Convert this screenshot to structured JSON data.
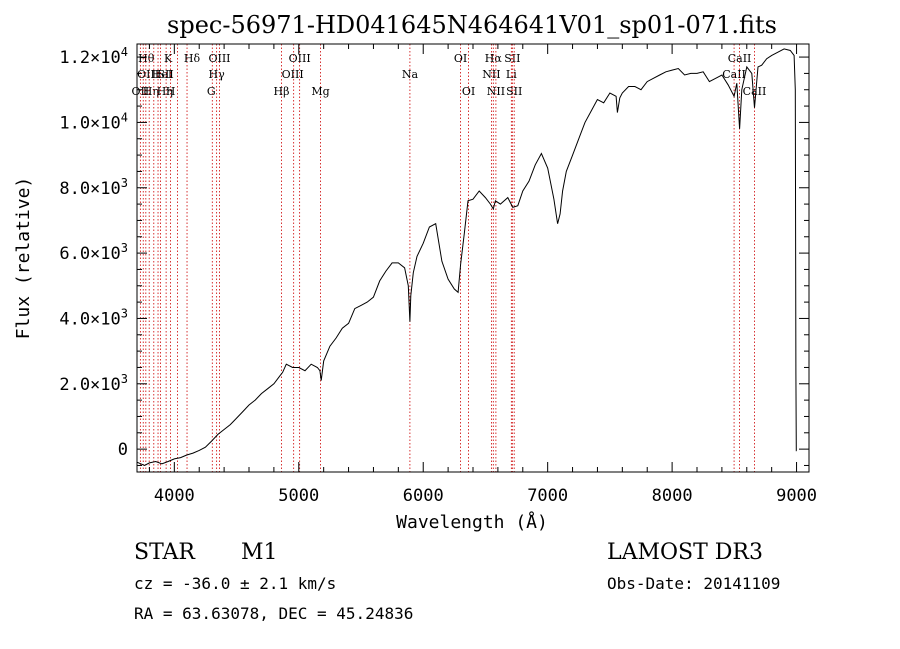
{
  "chart_data": {
    "type": "line",
    "title": "spec-56971-HD041645N464641V01_sp01-071.fits",
    "xlabel": "Wavelength (Å)",
    "ylabel": "Flux (relative)",
    "xlim": [
      3700,
      9100
    ],
    "ylim": [
      -700,
      12400
    ],
    "x_ticks": [
      {
        "value": 4000,
        "label": "4000"
      },
      {
        "value": 5000,
        "label": "5000"
      },
      {
        "value": 6000,
        "label": "6000"
      },
      {
        "value": 7000,
        "label": "7000"
      },
      {
        "value": 8000,
        "label": "8000"
      },
      {
        "value": 9000,
        "label": "9000"
      }
    ],
    "y_ticks": [
      {
        "value": 0,
        "mant": "0",
        "exp": ""
      },
      {
        "value": 2000,
        "mant": "2.0×10",
        "exp": "3"
      },
      {
        "value": 4000,
        "mant": "4.0×10",
        "exp": "3"
      },
      {
        "value": 6000,
        "mant": "6.0×10",
        "exp": "3"
      },
      {
        "value": 8000,
        "mant": "8.0×10",
        "exp": "3"
      },
      {
        "value": 10000,
        "mant": "1.0×10",
        "exp": "4"
      },
      {
        "value": 12000,
        "mant": "1.2×10",
        "exp": "4"
      }
    ],
    "series": [
      {
        "name": "flux",
        "x": [
          3700,
          3760,
          3800,
          3850,
          3900,
          3950,
          4000,
          4050,
          4100,
          4150,
          4200,
          4250,
          4300,
          4350,
          4400,
          4450,
          4500,
          4550,
          4600,
          4650,
          4700,
          4750,
          4800,
          4850,
          4870,
          4900,
          4950,
          5000,
          5050,
          5100,
          5150,
          5170,
          5180,
          5200,
          5250,
          5300,
          5350,
          5400,
          5450,
          5500,
          5550,
          5600,
          5650,
          5700,
          5750,
          5800,
          5850,
          5880,
          5893,
          5900,
          5920,
          5950,
          6000,
          6050,
          6100,
          6150,
          6200,
          6250,
          6280,
          6300,
          6330,
          6360,
          6400,
          6450,
          6500,
          6540,
          6563,
          6580,
          6620,
          6680,
          6720,
          6760,
          6800,
          6850,
          6900,
          6950,
          7000,
          7050,
          7080,
          7100,
          7120,
          7150,
          7200,
          7250,
          7300,
          7350,
          7400,
          7450,
          7500,
          7550,
          7560,
          7580,
          7600,
          7650,
          7700,
          7750,
          7800,
          7850,
          7900,
          7950,
          8000,
          8050,
          8100,
          8150,
          8200,
          8250,
          8300,
          8350,
          8400,
          8450,
          8498,
          8520,
          8542,
          8560,
          8600,
          8640,
          8662,
          8690,
          8720,
          8760,
          8800,
          8850,
          8900,
          8950,
          8980,
          8990,
          8995,
          8998,
          9000
        ],
        "values": [
          -400,
          -500,
          -420,
          -380,
          -450,
          -380,
          -300,
          -260,
          -180,
          -120,
          -40,
          60,
          250,
          450,
          600,
          750,
          950,
          1150,
          1350,
          1500,
          1700,
          1850,
          2000,
          2250,
          2350,
          2600,
          2500,
          2500,
          2400,
          2600,
          2500,
          2400,
          2100,
          2700,
          3150,
          3400,
          3700,
          3850,
          4300,
          4400,
          4500,
          4650,
          5150,
          5450,
          5700,
          5700,
          5550,
          5000,
          3900,
          4700,
          5400,
          5900,
          6300,
          6800,
          6900,
          5750,
          5200,
          4900,
          4800,
          5650,
          6600,
          7600,
          7650,
          7900,
          7700,
          7500,
          7350,
          7600,
          7500,
          7700,
          7400,
          7450,
          7900,
          8200,
          8700,
          9050,
          8600,
          7650,
          6900,
          7200,
          7900,
          8500,
          9000,
          9500,
          10000,
          10350,
          10700,
          10600,
          10900,
          10800,
          10300,
          10750,
          10900,
          11100,
          11100,
          11000,
          11250,
          11350,
          11450,
          11550,
          11600,
          11650,
          11450,
          11500,
          11500,
          11550,
          11250,
          11350,
          11450,
          11150,
          10800,
          11200,
          9800,
          11000,
          11700,
          11500,
          10450,
          11700,
          11750,
          11950,
          12050,
          12150,
          12250,
          12200,
          12050,
          11000,
          2300,
          -50,
          -50
        ]
      }
    ],
    "lines": [
      {
        "x": 3727,
        "label": "OII",
        "row": 2,
        "dx": 0
      },
      {
        "x": 3750,
        "label": "Hθ",
        "row": 0,
        "dx": 3
      },
      {
        "x": 3771,
        "label": "Hη",
        "row": 2,
        "dx": 5
      },
      {
        "x": 3798,
        "label": "OIII",
        "row": 1,
        "dx": -1
      },
      {
        "x": 3835,
        "label": "Hη",
        "row": 2,
        "dx": 11
      },
      {
        "x": 3869,
        "label": "HeI",
        "row": 1,
        "dx": 4
      },
      {
        "x": 3889,
        "label": "",
        "row": 0,
        "dx": 0
      },
      {
        "x": 3934,
        "label": "K",
        "row": 0,
        "dx": 2
      },
      {
        "x": 3970,
        "label": "H",
        "row": 2,
        "dx": 0
      },
      {
        "x": 4026,
        "label": "SII",
        "row": 1,
        "dx": -12
      },
      {
        "x": 4102,
        "label": "Hδ",
        "row": 0,
        "dx": 5
      },
      {
        "x": 4340,
        "label": "Hγ",
        "row": 1,
        "dx": 0
      },
      {
        "x": 4305,
        "label": "G",
        "row": 2,
        "dx": -1
      },
      {
        "x": 4363,
        "label": "OIII",
        "row": 0,
        "dx": 0
      },
      {
        "x": 4861,
        "label": "Hβ",
        "row": 2,
        "dx": 0
      },
      {
        "x": 4959,
        "label": "OIII",
        "row": 1,
        "dx": -1
      },
      {
        "x": 5007,
        "label": "OIII",
        "row": 0,
        "dx": 0
      },
      {
        "x": 5175,
        "label": "Mg",
        "row": 2,
        "dx": 0
      },
      {
        "x": 5893,
        "label": "Na",
        "row": 1,
        "dx": 0
      },
      {
        "x": 6300,
        "label": "OI",
        "row": 0,
        "dx": 0
      },
      {
        "x": 6364,
        "label": "OI",
        "row": 2,
        "dx": 0
      },
      {
        "x": 6548,
        "label": "NII",
        "row": 1,
        "dx": 0
      },
      {
        "x": 6563,
        "label": "Hα",
        "row": 0,
        "dx": 0
      },
      {
        "x": 6584,
        "label": "NII",
        "row": 2,
        "dx": 0
      },
      {
        "x": 6708,
        "label": "Li",
        "row": 1,
        "dx": 0
      },
      {
        "x": 6716,
        "label": "SII",
        "row": 0,
        "dx": 0
      },
      {
        "x": 6731,
        "label": "SII",
        "row": 2,
        "dx": 0
      },
      {
        "x": 8498,
        "label": "CaII",
        "row": 1,
        "dx": 0
      },
      {
        "x": 8542,
        "label": "CaII",
        "row": 0,
        "dx": 0
      },
      {
        "x": 8662,
        "label": "CaII",
        "row": 2,
        "dx": 0
      }
    ]
  },
  "info": {
    "object_class": "STAR",
    "subclass": "M1",
    "survey": "LAMOST DR3",
    "cz": "cz = -36.0 ± 2.1 km/s",
    "obs_date": "Obs-Date: 20141109",
    "radec": "RA =  63.63078, DEC =  45.24836"
  }
}
